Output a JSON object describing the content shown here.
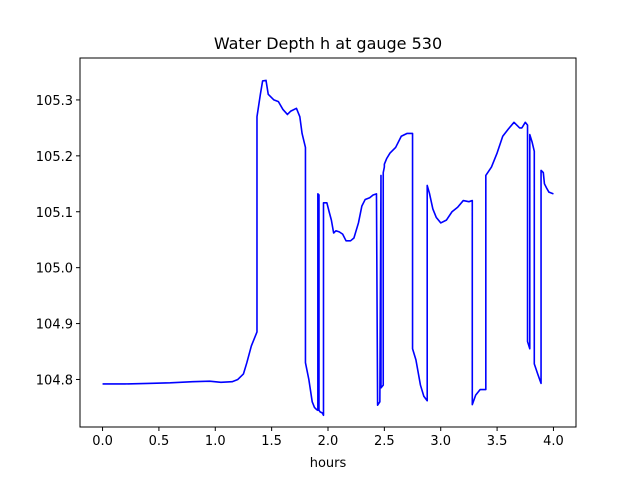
{
  "chart_data": {
    "type": "line",
    "title": "Water Depth h at gauge 530",
    "xlabel": "hours",
    "ylabel": "",
    "xlim": [
      -0.2,
      4.2
    ],
    "ylim": [
      104.715,
      105.375
    ],
    "grid": false,
    "xticks": [
      0.0,
      0.5,
      1.0,
      1.5,
      2.0,
      2.5,
      3.0,
      3.5,
      4.0
    ],
    "xtick_labels": [
      "0.0",
      "0.5",
      "1.0",
      "1.5",
      "2.0",
      "2.5",
      "3.0",
      "3.5",
      "4.0"
    ],
    "yticks": [
      104.8,
      104.9,
      105.0,
      105.1,
      105.2,
      105.3
    ],
    "ytick_labels": [
      "104.8",
      "104.9",
      "105.0",
      "105.1",
      "105.2",
      "105.3"
    ],
    "series": [
      {
        "color": "#0000ff",
        "x": [
          0.0,
          0.2,
          0.4,
          0.6,
          0.8,
          0.95,
          1.05,
          1.15,
          1.2,
          1.25,
          1.28,
          1.32,
          1.37,
          1.37,
          1.4,
          1.42,
          1.45,
          1.47,
          1.52,
          1.56,
          1.6,
          1.64,
          1.67,
          1.72,
          1.75,
          1.77,
          1.8,
          1.8,
          1.83,
          1.86,
          1.88,
          1.9,
          1.91,
          1.91,
          1.92,
          1.92,
          1.93,
          1.95,
          1.96,
          1.96,
          1.99,
          2.01,
          2.03,
          2.05,
          2.07,
          2.1,
          2.13,
          2.16,
          2.2,
          2.23,
          2.27,
          2.3,
          2.33,
          2.37,
          2.4,
          2.43,
          2.44,
          2.44,
          2.46,
          2.47,
          2.47,
          2.49,
          2.49,
          2.5,
          2.5,
          2.52,
          2.55,
          2.6,
          2.65,
          2.7,
          2.75,
          2.75,
          2.78,
          2.82,
          2.85,
          2.88,
          2.88,
          2.9,
          2.93,
          2.96,
          3.0,
          3.05,
          3.1,
          3.15,
          3.2,
          3.25,
          3.28,
          3.28,
          3.31,
          3.35,
          3.4,
          3.4,
          3.45,
          3.5,
          3.55,
          3.6,
          3.65,
          3.7,
          3.72,
          3.75,
          3.77,
          3.77,
          3.79,
          3.79,
          3.81,
          3.83,
          3.83,
          3.86,
          3.89,
          3.89,
          3.91,
          3.92,
          3.94,
          3.96,
          4.0
        ],
        "y": [
          104.792,
          104.792,
          104.793,
          104.794,
          104.796,
          104.797,
          104.795,
          104.796,
          104.8,
          104.81,
          104.83,
          104.86,
          104.885,
          105.27,
          105.31,
          105.334,
          105.335,
          105.31,
          105.3,
          105.297,
          105.283,
          105.274,
          105.28,
          105.285,
          105.27,
          105.24,
          105.215,
          104.83,
          104.8,
          104.76,
          104.75,
          104.746,
          104.745,
          105.132,
          105.13,
          104.745,
          104.742,
          104.74,
          104.736,
          105.116,
          105.116,
          105.1,
          105.085,
          105.062,
          105.066,
          105.064,
          105.06,
          105.048,
          105.048,
          105.053,
          105.08,
          105.11,
          105.122,
          105.125,
          105.13,
          105.132,
          104.754,
          104.754,
          104.76,
          105.165,
          104.785,
          104.79,
          105.17,
          105.18,
          105.185,
          105.195,
          105.205,
          105.215,
          105.235,
          105.24,
          105.24,
          104.855,
          104.835,
          104.79,
          104.77,
          104.762,
          105.147,
          105.133,
          105.105,
          105.09,
          105.08,
          105.085,
          105.1,
          105.108,
          105.12,
          105.118,
          105.12,
          104.755,
          104.772,
          104.782,
          104.782,
          105.165,
          105.18,
          105.205,
          105.235,
          105.248,
          105.26,
          105.25,
          105.25,
          105.26,
          105.255,
          104.868,
          104.855,
          105.238,
          105.225,
          105.208,
          104.828,
          104.81,
          104.793,
          105.174,
          105.17,
          105.15,
          105.142,
          105.135,
          105.132
        ]
      }
    ]
  }
}
